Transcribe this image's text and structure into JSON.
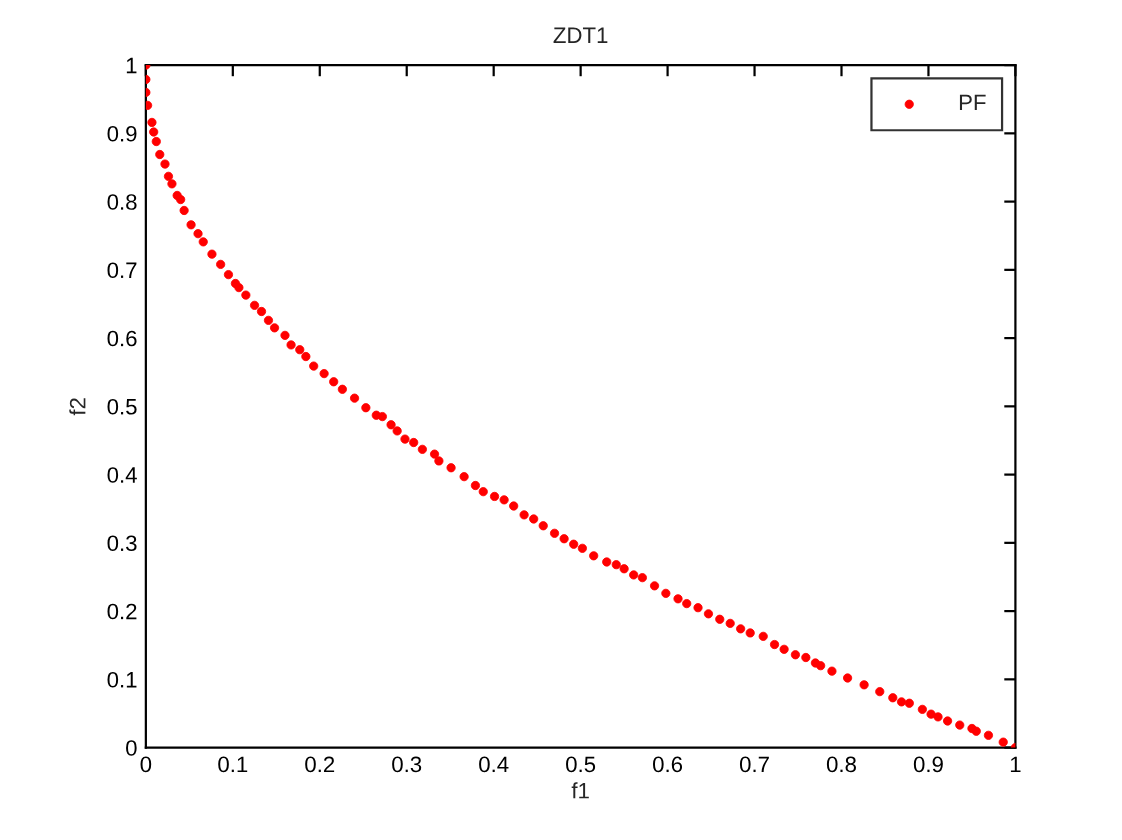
{
  "chart_data": {
    "type": "scatter",
    "title": "ZDT1",
    "xlabel": "f1",
    "ylabel": "f2",
    "series": [
      {
        "name": "PF",
        "color": "#ff0000",
        "x": [
          0,
          0,
          0,
          0.002,
          0.007,
          0.009,
          0.012,
          0.016,
          0.022,
          0.026,
          0.03,
          0.036,
          0.04,
          0.044,
          0.052,
          0.06,
          0.066,
          0.076,
          0.086,
          0.095,
          0.103,
          0.107,
          0.115,
          0.125,
          0.133,
          0.141,
          0.148,
          0.16,
          0.167,
          0.177,
          0.184,
          0.193,
          0.205,
          0.216,
          0.226,
          0.24,
          0.253,
          0.265,
          0.272,
          0.282,
          0.289,
          0.298,
          0.308,
          0.318,
          0.332,
          0.337,
          0.351,
          0.366,
          0.379,
          0.388,
          0.401,
          0.412,
          0.423,
          0.435,
          0.446,
          0.457,
          0.47,
          0.481,
          0.492,
          0.502,
          0.515,
          0.53,
          0.541,
          0.55,
          0.561,
          0.571,
          0.585,
          0.598,
          0.612,
          0.622,
          0.635,
          0.647,
          0.66,
          0.672,
          0.684,
          0.695,
          0.71,
          0.723,
          0.734,
          0.747,
          0.759,
          0.77,
          0.776,
          0.789,
          0.807,
          0.826,
          0.844,
          0.859,
          0.869,
          0.878,
          0.893,
          0.903,
          0.911,
          0.922,
          0.936,
          0.95,
          0.955,
          0.969,
          0.986,
          1
        ],
        "values": [
          1,
          0.979,
          0.96,
          0.941,
          0.916,
          0.902,
          0.888,
          0.869,
          0.855,
          0.837,
          0.826,
          0.809,
          0.803,
          0.787,
          0.766,
          0.753,
          0.741,
          0.723,
          0.708,
          0.693,
          0.68,
          0.674,
          0.663,
          0.648,
          0.639,
          0.626,
          0.615,
          0.604,
          0.59,
          0.583,
          0.573,
          0.559,
          0.548,
          0.536,
          0.525,
          0.512,
          0.498,
          0.487,
          0.485,
          0.473,
          0.464,
          0.452,
          0.447,
          0.437,
          0.43,
          0.42,
          0.41,
          0.397,
          0.384,
          0.375,
          0.368,
          0.363,
          0.354,
          0.341,
          0.335,
          0.325,
          0.314,
          0.306,
          0.298,
          0.292,
          0.281,
          0.272,
          0.268,
          0.262,
          0.253,
          0.249,
          0.237,
          0.226,
          0.218,
          0.211,
          0.205,
          0.196,
          0.188,
          0.182,
          0.174,
          0.168,
          0.163,
          0.151,
          0.144,
          0.136,
          0.132,
          0.124,
          0.12,
          0.112,
          0.102,
          0.092,
          0.082,
          0.073,
          0.067,
          0.065,
          0.056,
          0.049,
          0.045,
          0.039,
          0.033,
          0.028,
          0.024,
          0.018,
          0.008,
          0
        ]
      }
    ],
    "xlim": [
      0,
      1
    ],
    "ylim": [
      0,
      1
    ],
    "xticks": [
      0,
      0.1,
      0.2,
      0.3,
      0.4,
      0.5,
      0.6,
      0.7,
      0.8,
      0.9,
      1
    ],
    "yticks": [
      0,
      0.1,
      0.2,
      0.3,
      0.4,
      0.5,
      0.6,
      0.7,
      0.8,
      0.9,
      1
    ],
    "grid": false,
    "legend": "top right",
    "marker": "circle"
  }
}
